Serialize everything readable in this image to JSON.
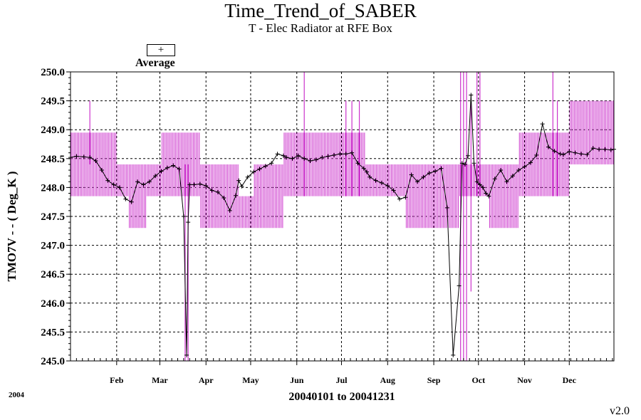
{
  "chart_data": {
    "type": "line",
    "title": "Time_Trend_of_SABER",
    "subtitle": "T - Elec Radiator at RFE Box",
    "xlabel": "20040101 to 20041231",
    "ylabel": "TMO7V  - - ( Deg_K )",
    "year_label": "2004",
    "version_label": "v2.0",
    "ylim": [
      245.0,
      250.0
    ],
    "xlim_day_of_year": [
      1,
      366
    ],
    "y_ticks": [
      "250.0",
      "249.5",
      "249.0",
      "248.5",
      "248.0",
      "247.5",
      "247.0",
      "246.5",
      "246.0",
      "245.5",
      "245.0"
    ],
    "y_tick_values": [
      250.0,
      249.5,
      249.0,
      248.5,
      248.0,
      247.5,
      247.0,
      246.5,
      246.0,
      245.5,
      245.0
    ],
    "x_tick_labels": [
      "Feb",
      "Mar",
      "Apr",
      "May",
      "Jun",
      "Jul",
      "Aug",
      "Sep",
      "Oct",
      "Nov",
      "Dec"
    ],
    "x_tick_days": [
      32,
      61,
      92,
      122,
      153,
      183,
      214,
      245,
      275,
      306,
      336
    ],
    "grid": true,
    "legend": {
      "symbol": "+",
      "label": "Average",
      "placement": "top-left"
    },
    "colors": {
      "range": "#cc33cc",
      "average": "#000000",
      "grid": "#000000"
    },
    "series": [
      {
        "name": "Average",
        "x_day_of_year": [
          1,
          5,
          10,
          14,
          18,
          22,
          26,
          30,
          34,
          38,
          42,
          46,
          50,
          54,
          58,
          62,
          66,
          70,
          74,
          77,
          79,
          80,
          81,
          84,
          88,
          92,
          96,
          100,
          104,
          108,
          112,
          114,
          116,
          120,
          124,
          128,
          132,
          136,
          140,
          144,
          146,
          150,
          154,
          158,
          162,
          166,
          170,
          174,
          178,
          182,
          186,
          190,
          194,
          198,
          200,
          202,
          206,
          210,
          214,
          218,
          222,
          226,
          230,
          234,
          238,
          242,
          246,
          250,
          254,
          258,
          262,
          264,
          266,
          268,
          270,
          272,
          274,
          276,
          278,
          280,
          282,
          286,
          290,
          294,
          298,
          302,
          306,
          310,
          314,
          318,
          322,
          326,
          330,
          332,
          336,
          340,
          344,
          348,
          352,
          356,
          360,
          364,
          366
        ],
        "y": [
          248.52,
          248.54,
          248.53,
          248.52,
          248.46,
          248.3,
          248.12,
          248.05,
          248.0,
          247.8,
          247.75,
          248.1,
          248.05,
          248.1,
          248.2,
          248.28,
          248.34,
          248.38,
          248.32,
          247.5,
          245.1,
          247.4,
          248.05,
          248.05,
          248.06,
          248.03,
          247.95,
          247.92,
          247.82,
          247.6,
          247.86,
          248.12,
          248.02,
          248.18,
          248.27,
          248.32,
          248.37,
          248.42,
          248.58,
          248.55,
          248.52,
          248.5,
          248.55,
          248.5,
          248.46,
          248.48,
          248.52,
          248.54,
          248.56,
          248.58,
          248.58,
          248.6,
          248.42,
          248.33,
          248.27,
          248.18,
          248.12,
          248.08,
          248.03,
          247.95,
          247.8,
          247.83,
          248.22,
          248.1,
          248.18,
          248.25,
          248.28,
          248.33,
          247.65,
          245.1,
          246.3,
          248.42,
          248.4,
          248.55,
          249.6,
          248.42,
          248.1,
          248.05,
          248.0,
          247.9,
          247.85,
          248.15,
          248.3,
          248.1,
          248.2,
          248.3,
          248.36,
          248.43,
          248.56,
          249.1,
          248.7,
          248.63,
          248.58,
          248.57,
          248.62,
          248.6,
          248.58,
          248.57,
          248.68,
          248.66,
          248.66,
          248.65,
          248.66
        ]
      },
      {
        "name": "Range",
        "bands": [
          {
            "from_day": 1,
            "to_day": 32,
            "min": 247.85,
            "max": 248.95
          },
          {
            "from_day": 32,
            "to_day": 40,
            "min": 247.85,
            "max": 248.4
          },
          {
            "from_day": 40,
            "to_day": 52,
            "min": 247.3,
            "max": 248.4
          },
          {
            "from_day": 52,
            "to_day": 62,
            "min": 247.85,
            "max": 248.4
          },
          {
            "from_day": 62,
            "to_day": 88,
            "min": 247.85,
            "max": 248.95
          },
          {
            "from_day": 88,
            "to_day": 114,
            "min": 247.3,
            "max": 248.4
          },
          {
            "from_day": 114,
            "to_day": 124,
            "min": 247.3,
            "max": 247.85
          },
          {
            "from_day": 124,
            "to_day": 144,
            "min": 247.3,
            "max": 248.4
          },
          {
            "from_day": 144,
            "to_day": 199,
            "min": 247.85,
            "max": 248.95
          },
          {
            "from_day": 199,
            "to_day": 226,
            "min": 247.85,
            "max": 248.4
          },
          {
            "from_day": 226,
            "to_day": 262,
            "min": 247.3,
            "max": 248.4
          },
          {
            "from_day": 262,
            "to_day": 282,
            "min": 247.85,
            "max": 248.4
          },
          {
            "from_day": 282,
            "to_day": 290,
            "min": 247.3,
            "max": 248.4
          },
          {
            "from_day": 290,
            "to_day": 302,
            "min": 247.3,
            "max": 248.4
          },
          {
            "from_day": 302,
            "to_day": 336,
            "min": 247.85,
            "max": 248.95
          },
          {
            "from_day": 336,
            "to_day": 366,
            "min": 248.4,
            "max": 249.5
          }
        ],
        "spikes": [
          {
            "day": 14,
            "min": 248.4,
            "max": 249.5
          },
          {
            "day": 78,
            "min": 245.0,
            "max": 248.4
          },
          {
            "day": 80,
            "min": 245.0,
            "max": 248.4
          },
          {
            "day": 158,
            "min": 247.85,
            "max": 250.0
          },
          {
            "day": 186,
            "min": 247.85,
            "max": 249.5
          },
          {
            "day": 190,
            "min": 247.85,
            "max": 249.5
          },
          {
            "day": 195,
            "min": 247.85,
            "max": 249.5
          },
          {
            "day": 263,
            "min": 245.0,
            "max": 250.0
          },
          {
            "day": 265,
            "min": 245.0,
            "max": 250.0
          },
          {
            "day": 267,
            "min": 245.0,
            "max": 250.0
          },
          {
            "day": 270,
            "min": 246.2,
            "max": 249.5
          },
          {
            "day": 274,
            "min": 247.85,
            "max": 250.0
          },
          {
            "day": 276,
            "min": 247.85,
            "max": 250.0
          },
          {
            "day": 325,
            "min": 247.85,
            "max": 250.0
          },
          {
            "day": 328,
            "min": 247.85,
            "max": 249.5
          }
        ]
      }
    ]
  }
}
